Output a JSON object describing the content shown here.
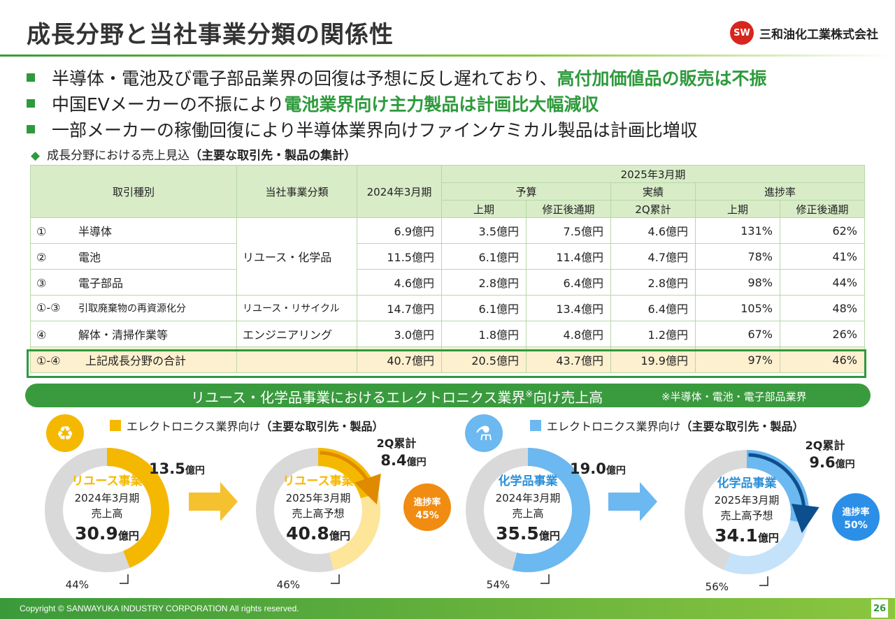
{
  "header": {
    "title": "成長分野と当社事業分類の関係性",
    "company": "三和油化工業株式会社",
    "logo_mark": "SW"
  },
  "bullets": [
    {
      "plain": "半導体・電池及び電子部品業界の回復は予想に反し遅れており、",
      "highlight": "高付加価値品の販売は不振"
    },
    {
      "plain": "中国EVメーカーの不振により",
      "highlight": "電池業界向け主力製品は計画比大幅減収"
    },
    {
      "plain": "一部メーカーの稼働回復により半導体業界向けファインケミカル製品は計画比増収",
      "highlight": ""
    }
  ],
  "subhead": {
    "marker": "◆",
    "text": "成長分野における売上見込",
    "bold": "（主要な取引先・製品の集計）"
  },
  "table": {
    "h_type": "取引種別",
    "h_business": "当社事業分類",
    "h_fy2024": "2024年3月期",
    "h_fy2025": "2025年3月期",
    "h_budget": "予算",
    "h_actual": "実績",
    "h_progress": "進捗率",
    "h_first_half": "上期",
    "h_revised_full": "修正後通期",
    "h_2q_cum": "2Q累計",
    "h_first_half_2": "上期",
    "h_revised_full_2": "修正後通期",
    "rows": [
      {
        "no": "①",
        "name": "半導体",
        "cat": "リユース・化学品",
        "fy24": "6.9億円",
        "b_h1": "3.5億円",
        "b_full": "7.5億円",
        "a_2q": "4.6億円",
        "p_h1": "131%",
        "p_full": "62%"
      },
      {
        "no": "②",
        "name": "電池",
        "cat": "",
        "fy24": "11.5億円",
        "b_h1": "6.1億円",
        "b_full": "11.4億円",
        "a_2q": "4.7億円",
        "p_h1": "78%",
        "p_full": "41%"
      },
      {
        "no": "③",
        "name": "電子部品",
        "cat": "",
        "fy24": "4.6億円",
        "b_h1": "2.8億円",
        "b_full": "6.4億円",
        "a_2q": "2.8億円",
        "p_h1": "98%",
        "p_full": "44%"
      },
      {
        "no": "①-③",
        "name": "引取廃棄物の再資源化分",
        "cat": "リユース・リサイクル",
        "fy24": "14.7億円",
        "b_h1": "6.1億円",
        "b_full": "13.4億円",
        "a_2q": "6.4億円",
        "p_h1": "105%",
        "p_full": "48%"
      },
      {
        "no": "④",
        "name": "解体・清掃作業等",
        "cat": "エンジニアリング",
        "fy24": "3.0億円",
        "b_h1": "1.8億円",
        "b_full": "4.8億円",
        "a_2q": "1.2億円",
        "p_h1": "67%",
        "p_full": "26%"
      }
    ],
    "total": {
      "no": "①-④",
      "name": "上記成長分野の合計",
      "fy24": "40.7億円",
      "b_h1": "20.5億円",
      "b_full": "43.7億円",
      "a_2q": "19.9億円",
      "p_h1": "97%",
      "p_full": "46%"
    }
  },
  "banner": {
    "main": "リユース・化学品事業におけるエレクトロニクス業界",
    "sup": "※",
    "main2": "向け売上高",
    "note": "※半導体・電池・電子部品業界"
  },
  "legend_left": {
    "text": "エレクトロニクス業界向け",
    "bold": "（主要な取引先・製品）",
    "color": "#f5b800"
  },
  "legend_right": {
    "text": "エレクトロニクス業界向け",
    "bold": "（主要な取引先・製品）",
    "color": "#6cb8f0"
  },
  "colors": {
    "green": "#2e9a3c",
    "orange": "#f5b800",
    "orange_light": "#fde59a",
    "orange_dark": "#e08a00",
    "blue": "#6cb8f0",
    "blue_light": "#c4e2fa",
    "blue_dark": "#0d4f8c",
    "gray": "#d9d9d9"
  },
  "chart_data": [
    {
      "type": "pie",
      "segment": "リユース事業",
      "period": "2024年3月期",
      "kind": "売上高",
      "total": "30.9",
      "unit": "億円",
      "electronics_value": "13.5",
      "electronics_unit": "億円",
      "electronics_share": 44,
      "share_label": "44%"
    },
    {
      "type": "pie",
      "segment": "リユース事業",
      "period": "2025年3月期",
      "kind": "売上高予想",
      "total": "40.8",
      "unit": "億円",
      "electronics_share": 46,
      "share_label": "46%",
      "progress_label": "2Q累計",
      "progress_value": "8.4",
      "progress_unit": "億円",
      "progress_rate_label": "進捗率",
      "progress_rate": "45%"
    },
    {
      "type": "pie",
      "segment": "化学品事業",
      "period": "2024年3月期",
      "kind": "売上高",
      "total": "35.5",
      "unit": "億円",
      "electronics_value": "19.0",
      "electronics_unit": "億円",
      "electronics_share": 54,
      "share_label": "54%"
    },
    {
      "type": "pie",
      "segment": "化学品事業",
      "period": "2025年3月期",
      "kind": "売上高予想",
      "total": "34.1",
      "unit": "億円",
      "electronics_share": 56,
      "share_label": "56%",
      "progress_label": "2Q累計",
      "progress_value": "9.6",
      "progress_unit": "億円",
      "progress_rate_label": "進捗率",
      "progress_rate": "50%"
    }
  ],
  "footer": {
    "copyright": "Copyright © SANWAYUKA INDUSTRY CORPORATION All rights reserved.",
    "page": "26"
  }
}
